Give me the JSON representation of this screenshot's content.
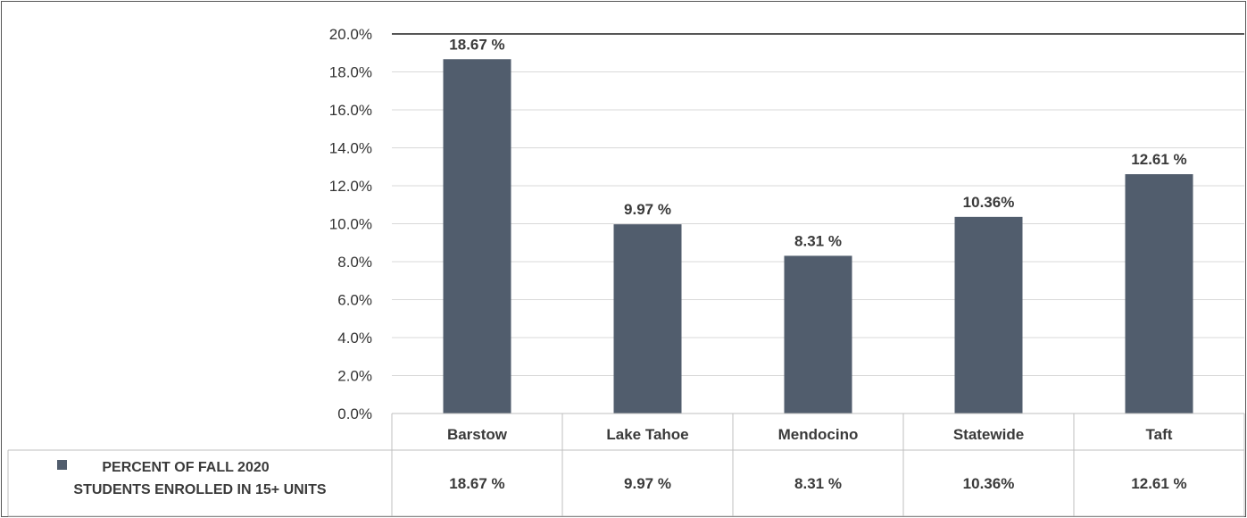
{
  "chart_data": {
    "type": "bar",
    "categories": [
      "Barstow",
      "Lake Tahoe",
      "Mendocino",
      "Statewide",
      "Taft"
    ],
    "series": [
      {
        "name": "PERCENT OF FALL 2020 STUDENTS ENROLLED IN 15+ UNITS",
        "name_lines": [
          "PERCENT OF FALL 2020",
          "STUDENTS ENROLLED IN 15+ UNITS"
        ],
        "values": [
          18.67,
          9.97,
          8.31,
          10.36,
          12.61
        ],
        "labels": [
          "18.67 %",
          "9.97 %",
          "8.31 %",
          "10.36%",
          "12.61 %"
        ],
        "color": "#515d6d"
      }
    ],
    "y_ticks": [
      "0.0%",
      "2.0%",
      "4.0%",
      "6.0%",
      "8.0%",
      "10.0%",
      "12.0%",
      "14.0%",
      "16.0%",
      "18.0%",
      "20.0%"
    ],
    "ylim": [
      0,
      20
    ],
    "grid": true,
    "data_table": true,
    "title": "",
    "xlabel": "",
    "ylabel": ""
  }
}
